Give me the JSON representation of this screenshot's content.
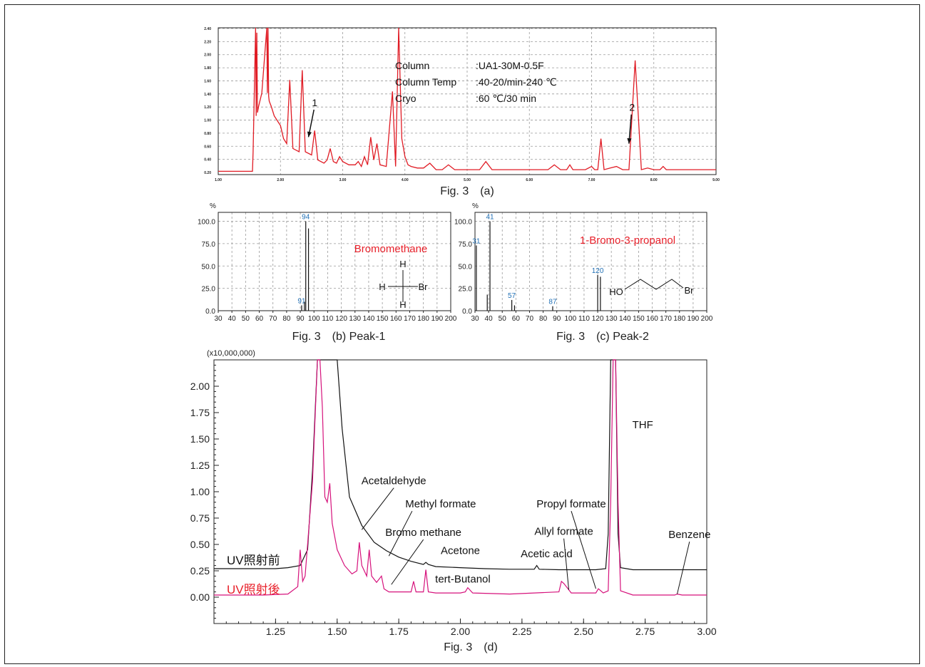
{
  "figure": {
    "captions": {
      "a": "Fig. 3　(a)",
      "b": "Fig. 3　(b) Peak-1",
      "c": "Fig. 3　(c) Peak-2",
      "d": "Fig. 3　(d)"
    }
  },
  "colors": {
    "red_trace": "#e01b24",
    "magenta_trace": "#d6127c",
    "black_trace": "#111111",
    "name_red": "#e8212b",
    "peak_blue": "#1f6fb5"
  },
  "chart_data": [
    {
      "id": "a",
      "type": "line",
      "title": "",
      "xlim": [
        1.0,
        9.0
      ],
      "ylim": [
        0,
        9
      ],
      "x_ticks": [
        1,
        2,
        3,
        4,
        5,
        6,
        7,
        8,
        9
      ],
      "x_tick_labels": [
        "1.00",
        "2.00",
        "3.00",
        "4.00",
        "5.00",
        "6.00",
        "7.00",
        "8.00",
        "9.00"
      ],
      "y_tick_labels": [
        "0.20",
        "0.40",
        "0.60",
        "0.80",
        "1.00",
        "1.20",
        "1.40",
        "1.60",
        "1.80",
        "2.00",
        "2.20",
        "2.40"
      ],
      "grid": true,
      "series": [
        {
          "color": "#e01b24",
          "x": [
            1.0,
            1.55,
            1.56,
            1.6,
            1.61,
            1.62,
            1.63,
            1.65,
            1.7,
            1.78,
            1.79,
            1.8,
            1.81,
            1.82,
            1.85,
            1.9,
            2.0,
            2.05,
            2.1,
            2.15,
            2.2,
            2.3,
            2.35,
            2.4,
            2.5,
            2.55,
            2.6,
            2.7,
            2.75,
            2.8,
            2.85,
            2.9,
            2.95,
            3.0,
            3.1,
            3.2,
            3.25,
            3.3,
            3.35,
            3.4,
            3.45,
            3.5,
            3.55,
            3.6,
            3.7,
            3.8,
            3.85,
            3.9,
            3.95,
            4.0,
            4.05,
            4.1,
            4.2,
            4.3,
            4.4,
            4.5,
            4.6,
            4.7,
            4.8,
            4.9,
            5.0,
            5.2,
            5.3,
            5.4,
            5.5,
            5.6,
            5.7,
            5.8,
            5.9,
            6.0,
            6.1,
            6.2,
            6.3,
            6.4,
            6.5,
            6.55,
            6.6,
            6.65,
            6.7,
            6.8,
            6.9,
            7.0,
            7.05,
            7.1,
            7.15,
            7.2,
            7.3,
            7.4,
            7.5,
            7.6,
            7.7,
            7.8,
            7.9,
            8.0,
            8.05,
            8.1,
            8.15,
            8.2,
            8.3,
            8.4,
            8.5,
            8.6,
            8.7,
            8.8,
            8.9,
            9.0
          ],
          "y": [
            0.2,
            0.2,
            1.4,
            9.0,
            3.6,
            8.7,
            3.8,
            4.2,
            5.0,
            9.0,
            5.0,
            9.0,
            4.8,
            4.5,
            4.2,
            3.6,
            3.0,
            2.2,
            1.9,
            5.8,
            1.6,
            1.4,
            6.4,
            1.4,
            1.2,
            2.7,
            0.9,
            0.7,
            0.9,
            1.6,
            0.8,
            0.7,
            1.1,
            0.8,
            0.6,
            0.6,
            0.8,
            0.5,
            1.1,
            0.6,
            2.3,
            0.9,
            1.9,
            0.6,
            0.5,
            5.1,
            0.5,
            9.0,
            2.2,
            1.1,
            0.6,
            0.5,
            0.4,
            0.4,
            0.7,
            0.3,
            0.3,
            0.6,
            0.3,
            0.3,
            0.3,
            0.3,
            0.8,
            0.3,
            0.3,
            0.3,
            0.3,
            0.3,
            0.3,
            0.3,
            0.3,
            0.3,
            0.3,
            0.6,
            0.3,
            0.3,
            0.3,
            0.6,
            0.3,
            0.3,
            0.3,
            0.5,
            0.3,
            0.3,
            2.2,
            0.3,
            0.4,
            0.5,
            0.3,
            0.3,
            7.0,
            0.3,
            0.4,
            0.3,
            0.3,
            0.3,
            0.5,
            0.3,
            0.3,
            0.3,
            0.3,
            0.3,
            0.3,
            0.3,
            0.3,
            0.3
          ]
        }
      ],
      "annotations": [
        {
          "text": "1",
          "x": 2.55,
          "y": 4.2,
          "arrow_to": [
            2.45,
            2.3
          ]
        },
        {
          "text": "2",
          "x": 7.65,
          "y": 3.9,
          "arrow_to": [
            7.6,
            1.9
          ]
        }
      ],
      "info": {
        "rows": [
          {
            "key": "Column",
            "value": ":UA1-30M-0.5F"
          },
          {
            "key": "Column Temp",
            "value": ":40-20/min-240 ℃"
          },
          {
            "key": "Cryo",
            "value": ":60 ℃/30 min"
          }
        ]
      }
    },
    {
      "id": "b",
      "type": "bar",
      "title": "Bromomethane",
      "ylabel": "%",
      "xlim": [
        30,
        200
      ],
      "ylim": [
        0,
        110
      ],
      "x_ticks": [
        30,
        40,
        50,
        60,
        70,
        80,
        90,
        100,
        110,
        120,
        130,
        140,
        150,
        160,
        170,
        180,
        190,
        200
      ],
      "y_ticks": [
        0,
        25,
        50,
        75,
        100
      ],
      "y_tick_labels": [
        "0.0",
        "25.0",
        "50.0",
        "75.0",
        "100.0"
      ],
      "grid": true,
      "peaks": [
        {
          "mz": 91,
          "intensity": 6,
          "label": "91"
        },
        {
          "mz": 93,
          "intensity": 10,
          "label": ""
        },
        {
          "mz": 94,
          "intensity": 100,
          "label": "94"
        },
        {
          "mz": 96,
          "intensity": 92,
          "label": ""
        }
      ],
      "structure": {
        "center": "C",
        "atoms": [
          "H",
          "H",
          "H",
          "Br"
        ]
      }
    },
    {
      "id": "c",
      "type": "bar",
      "title": "1-Bromo-3-propanol",
      "ylabel": "%",
      "xlim": [
        30,
        200
      ],
      "ylim": [
        0,
        110
      ],
      "x_ticks": [
        30,
        40,
        50,
        60,
        70,
        80,
        90,
        100,
        110,
        120,
        130,
        140,
        150,
        160,
        170,
        180,
        190,
        200
      ],
      "y_ticks": [
        0,
        25,
        50,
        75,
        100
      ],
      "y_tick_labels": [
        "0.0",
        "25.0",
        "50.0",
        "75.0",
        "100.0"
      ],
      "grid": true,
      "peaks": [
        {
          "mz": 31,
          "intensity": 73,
          "label": "31"
        },
        {
          "mz": 39,
          "intensity": 18,
          "label": ""
        },
        {
          "mz": 41,
          "intensity": 100,
          "label": "41"
        },
        {
          "mz": 57,
          "intensity": 12,
          "label": "57"
        },
        {
          "mz": 59,
          "intensity": 6,
          "label": ""
        },
        {
          "mz": 87,
          "intensity": 5,
          "label": "87"
        },
        {
          "mz": 120,
          "intensity": 40,
          "label": "120"
        },
        {
          "mz": 122,
          "intensity": 38,
          "label": ""
        }
      ],
      "structure": {
        "left": "HO",
        "right": "Br"
      }
    },
    {
      "id": "d",
      "type": "line",
      "yunit": "(x10,000,000)",
      "xlim": [
        1.0,
        3.0
      ],
      "ylim": [
        -0.25,
        2.25
      ],
      "x_ticks": [
        1.25,
        1.5,
        1.75,
        2.0,
        2.25,
        2.5,
        2.75,
        3.0
      ],
      "x_tick_labels": [
        "1.25",
        "1.50",
        "1.75",
        "2.00",
        "2.25",
        "2.50",
        "2.75",
        "3.00"
      ],
      "y_ticks": [
        0.0,
        0.25,
        0.5,
        0.75,
        1.0,
        1.25,
        1.5,
        1.75,
        2.0
      ],
      "y_tick_labels": [
        "0.00",
        "0.25",
        "0.50",
        "0.75",
        "1.00",
        "1.25",
        "1.50",
        "1.75",
        "2.00"
      ],
      "series": [
        {
          "name": "UV照射前",
          "color": "#111111",
          "x": [
            1.0,
            1.25,
            1.3,
            1.35,
            1.38,
            1.4,
            1.42,
            1.44,
            1.46,
            1.48,
            1.5,
            1.52,
            1.55,
            1.6,
            1.65,
            1.7,
            1.75,
            1.8,
            1.85,
            1.86,
            1.87,
            1.9,
            2.0,
            2.1,
            2.2,
            2.3,
            2.31,
            2.32,
            2.4,
            2.5,
            2.55,
            2.59,
            2.6,
            2.61,
            2.62,
            2.63,
            2.64,
            2.65,
            2.7,
            2.8,
            2.9,
            3.0
          ],
          "y": [
            0.27,
            0.27,
            0.28,
            0.3,
            0.45,
            1.2,
            2.25,
            2.25,
            2.25,
            2.25,
            2.25,
            1.6,
            0.95,
            0.68,
            0.52,
            0.44,
            0.38,
            0.34,
            0.31,
            0.33,
            0.31,
            0.29,
            0.28,
            0.27,
            0.265,
            0.265,
            0.3,
            0.265,
            0.26,
            0.26,
            0.26,
            0.27,
            0.6,
            2.25,
            2.25,
            2.25,
            0.6,
            0.28,
            0.26,
            0.26,
            0.26,
            0.26
          ]
        },
        {
          "name": "UV照射後",
          "color": "#d6127c",
          "x": [
            1.0,
            1.2,
            1.3,
            1.34,
            1.35,
            1.36,
            1.37,
            1.38,
            1.4,
            1.42,
            1.43,
            1.44,
            1.45,
            1.46,
            1.47,
            1.48,
            1.5,
            1.53,
            1.56,
            1.58,
            1.59,
            1.6,
            1.62,
            1.63,
            1.64,
            1.66,
            1.68,
            1.69,
            1.71,
            1.75,
            1.8,
            1.81,
            1.82,
            1.85,
            1.86,
            1.87,
            1.9,
            2.0,
            2.02,
            2.03,
            2.05,
            2.2,
            2.3,
            2.4,
            2.41,
            2.42,
            2.43,
            2.45,
            2.5,
            2.55,
            2.56,
            2.58,
            2.6,
            2.61,
            2.62,
            2.63,
            2.64,
            2.65,
            2.7,
            2.8,
            2.87,
            2.88,
            2.9,
            3.0
          ],
          "y": [
            0.02,
            0.02,
            0.03,
            0.1,
            0.45,
            0.15,
            0.2,
            0.5,
            1.1,
            2.25,
            2.25,
            1.8,
            0.95,
            0.9,
            1.08,
            0.7,
            0.45,
            0.3,
            0.22,
            0.25,
            0.52,
            0.3,
            0.2,
            0.45,
            0.2,
            0.14,
            0.2,
            0.08,
            0.05,
            0.05,
            0.05,
            0.15,
            0.05,
            0.05,
            0.26,
            0.05,
            0.04,
            0.04,
            0.05,
            0.09,
            0.04,
            0.03,
            0.04,
            0.05,
            0.15,
            0.13,
            0.1,
            0.04,
            0.04,
            0.04,
            0.08,
            0.04,
            0.06,
            0.9,
            2.25,
            2.25,
            0.9,
            0.06,
            0.02,
            0.02,
            0.02,
            0.03,
            0.02,
            0.02
          ]
        }
      ],
      "annotations": [
        {
          "text": "Acetaldehyde",
          "x": 1.73,
          "y": 1.07,
          "arrow_to": [
            1.6,
            0.64
          ]
        },
        {
          "text": "Methyl formate",
          "x": 1.92,
          "y": 0.85,
          "arrow_to": [
            1.71,
            0.39
          ]
        },
        {
          "text": "Bromo methane",
          "x": 1.85,
          "y": 0.58,
          "arrow_to": [
            1.72,
            0.12
          ],
          "color": "#e8212b"
        },
        {
          "text": "Acetone",
          "x": 2.0,
          "y": 0.41
        },
        {
          "text": "tert-Butanol",
          "x": 2.01,
          "y": 0.14
        },
        {
          "text": "Acetic acid",
          "x": 2.35,
          "y": 0.38
        },
        {
          "text": "Allyl formate",
          "x": 2.42,
          "y": 0.59,
          "arrow_to": [
            2.44,
            0.07
          ]
        },
        {
          "text": "Propyl formate",
          "x": 2.45,
          "y": 0.85,
          "arrow_to": [
            2.55,
            0.08
          ]
        },
        {
          "text": "Benzene",
          "x": 2.93,
          "y": 0.56,
          "arrow_to": [
            2.88,
            0.03
          ]
        },
        {
          "text": "THF",
          "x": 2.74,
          "y": 1.6
        }
      ]
    }
  ]
}
